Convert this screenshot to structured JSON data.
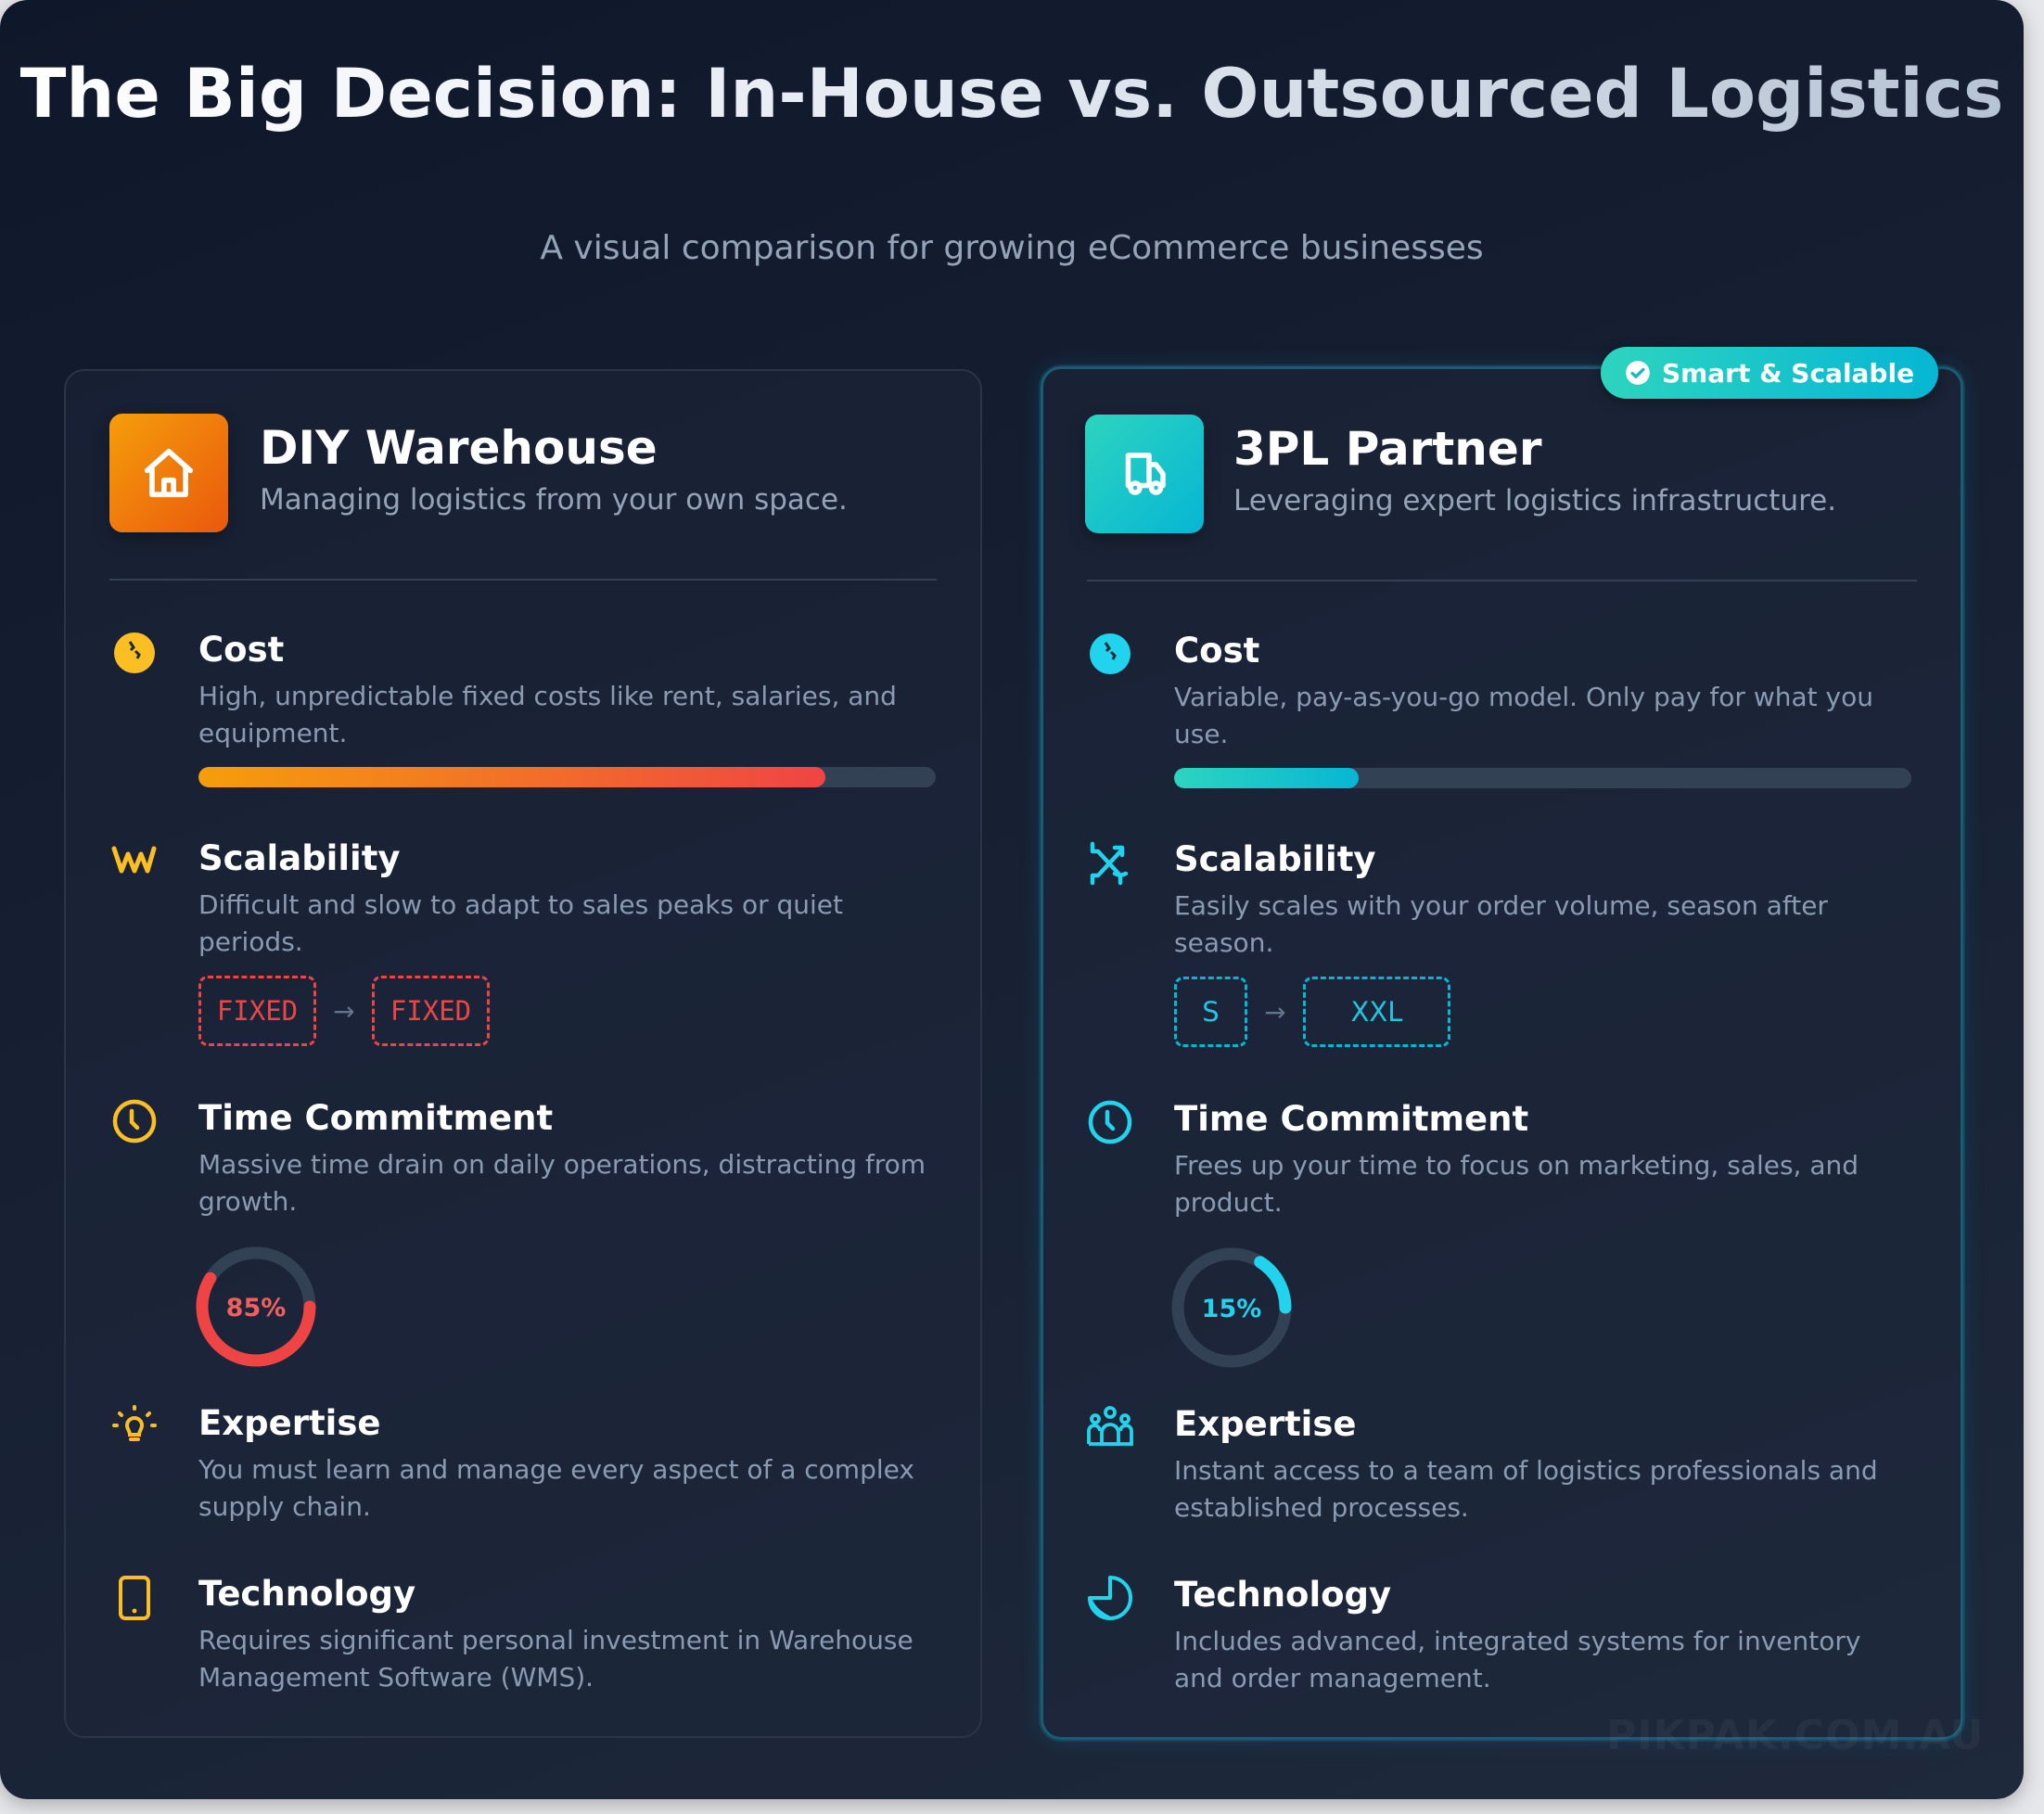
{
  "header": {
    "title": "The Big Decision: In-House vs. Outsourced Logistics",
    "subtitle": "A visual comparison for growing eCommerce businesses"
  },
  "colors": {
    "amber": "#fbbf24",
    "cyan": "#22d3ee",
    "red": "#ef4444",
    "orange": "#f59e0b",
    "teal": "#2dd4bf"
  },
  "left": {
    "title": "DIY Warehouse",
    "subtitle": "Managing logistics from your own space.",
    "icon": "house-icon",
    "items": [
      {
        "title": "Cost",
        "desc": "High, unpredictable fixed costs like rent, salaries, and equipment.",
        "icon": "coin-icon",
        "bar_percent": 85
      },
      {
        "title": "Scalability",
        "desc": "Difficult and slow to adapt to sales peaks or quiet periods.",
        "icon": "chart-wave-icon",
        "from": "FIXED",
        "to": "FIXED"
      },
      {
        "title": "Time Commitment",
        "desc": "Massive time drain on daily operations, distracting from growth.",
        "icon": "clock-icon",
        "ring_label": "85%",
        "ring_percent": 85
      },
      {
        "title": "Expertise",
        "desc": "You must learn and manage every aspect of a complex supply chain.",
        "icon": "lightbulb-icon"
      },
      {
        "title": "Technology",
        "desc": "Requires significant personal investment in Warehouse Management Software (WMS).",
        "icon": "phone-icon"
      }
    ]
  },
  "right": {
    "badge": "Smart & Scalable",
    "title": "3PL Partner",
    "subtitle": "Leveraging expert logistics infrastructure.",
    "icon": "truck-icon",
    "items": [
      {
        "title": "Cost",
        "desc": "Variable, pay-as-you-go model. Only pay for what you use.",
        "icon": "coin-icon",
        "bar_percent": 25
      },
      {
        "title": "Scalability",
        "desc": "Easily scales with your order volume, season after season.",
        "icon": "arrows-cross-icon",
        "from": "S",
        "to": "XXL"
      },
      {
        "title": "Time Commitment",
        "desc": "Frees up your time to focus on marketing, sales, and product.",
        "icon": "clock-icon",
        "ring_label": "15%",
        "ring_percent": 15
      },
      {
        "title": "Expertise",
        "desc": "Instant access to a team of logistics professionals and established processes.",
        "icon": "team-icon"
      },
      {
        "title": "Technology",
        "desc": "Includes advanced, integrated systems for inventory and order management.",
        "icon": "pie-chart-icon"
      }
    ]
  },
  "watermark": "PIKPAK.COM.AU arrow arrow"
}
